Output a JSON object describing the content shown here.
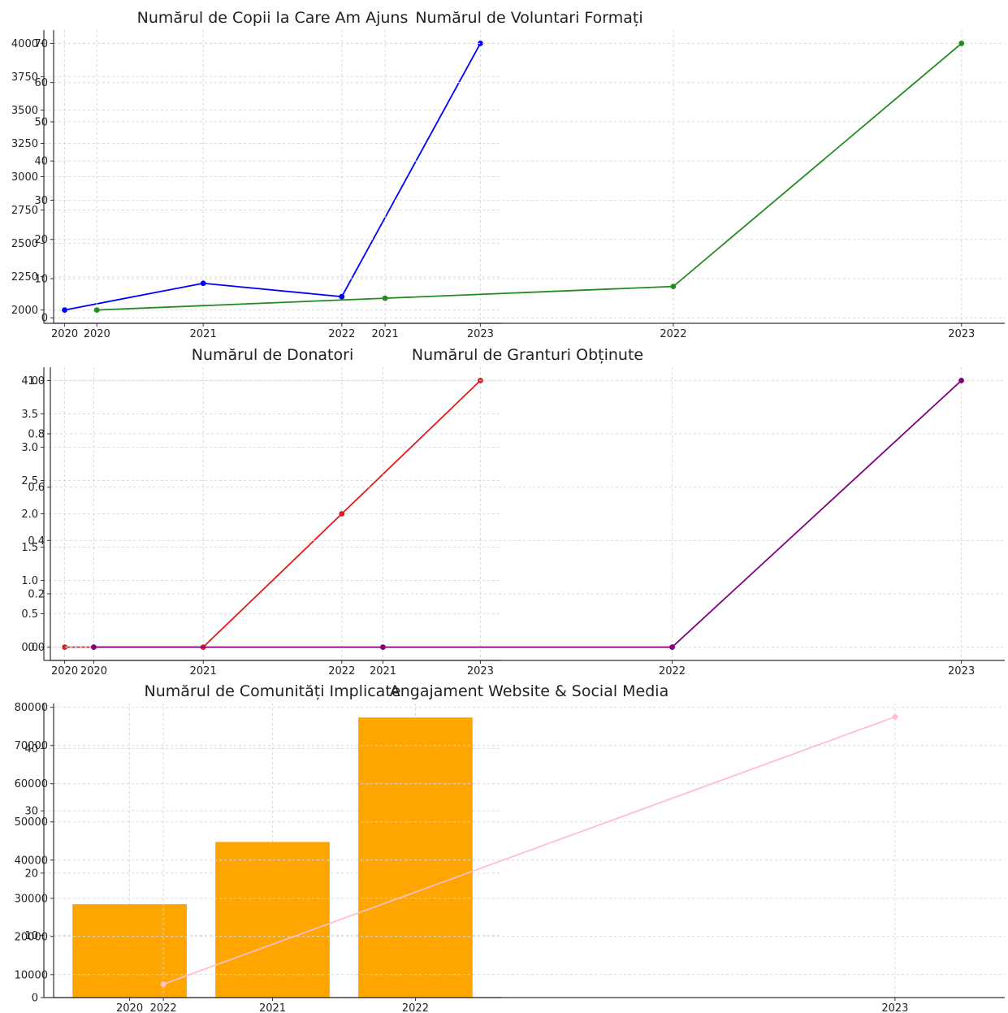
{
  "chart_data": [
    {
      "type": "line",
      "title": "Numărul de Copii la Care Am Ajuns",
      "categories": [
        "2020",
        "2021",
        "2022",
        "2023"
      ],
      "series": [
        {
          "values": [
            2000,
            2200,
            2100,
            4000
          ],
          "color": "#0000ff"
        }
      ],
      "ylim": [
        1900,
        4100
      ],
      "yticks": [
        2000,
        2250,
        2500,
        2750,
        3000,
        3250,
        3500,
        3750,
        4000
      ],
      "ytick_labels": [
        "2000",
        "2250",
        "2500",
        "2750",
        "3000",
        "3250",
        "3500",
        "3750",
        "4000"
      ],
      "grid": true
    },
    {
      "type": "line",
      "title": "Numărul de Voluntari Formați",
      "categories": [
        "2020",
        "2021",
        "2022",
        "2023"
      ],
      "series": [
        {
          "values": [
            2,
            5,
            8,
            70
          ],
          "color": "#228b22"
        }
      ],
      "ylim": [
        -1.4,
        73.4
      ],
      "yticks": [
        0,
        10,
        20,
        30,
        40,
        50,
        60,
        70
      ],
      "ytick_labels": [
        "0",
        "10",
        "20",
        "30",
        "40",
        "50",
        "60",
        "70"
      ],
      "grid": true
    },
    {
      "type": "line",
      "title": "Numărul de Donatori",
      "categories": [
        "2020",
        "2021",
        "2022",
        "2023"
      ],
      "series": [
        {
          "values": [
            0,
            0,
            2,
            4
          ],
          "color": "#e31a1c"
        }
      ],
      "ylim": [
        -0.2,
        4.2
      ],
      "yticks": [
        0.0,
        0.5,
        1.0,
        1.5,
        2.0,
        2.5,
        3.0,
        3.5,
        4.0
      ],
      "ytick_labels": [
        "0.0",
        "0.5",
        "1.0",
        "1.5",
        "2.0",
        "2.5",
        "3.0",
        "3.5",
        "4.0"
      ],
      "grid": true
    },
    {
      "type": "line",
      "title": "Numărul de Granturi Obținute",
      "categories": [
        "2020",
        "2021",
        "2022",
        "2023"
      ],
      "series": [
        {
          "values": [
            0,
            0,
            0,
            1
          ],
          "color": "#800080"
        }
      ],
      "ylim": [
        -0.05,
        1.05
      ],
      "yticks": [
        0.0,
        0.2,
        0.4,
        0.6,
        0.8,
        1.0
      ],
      "ytick_labels": [
        "0.0",
        "0.2",
        "0.4",
        "0.6",
        "0.8",
        "1.0"
      ],
      "grid": true
    },
    {
      "type": "bar",
      "title": "Numărul de Comunități Implicate",
      "categories": [
        "2020",
        "2021",
        "2022"
      ],
      "series": [
        {
          "values": [
            15,
            25,
            45
          ],
          "color": "#ffa500"
        }
      ],
      "ylim": [
        0,
        47.25
      ],
      "yticks": [
        0,
        10,
        20,
        30,
        40
      ],
      "ytick_labels": [
        "0",
        "10",
        "20",
        "30",
        "40"
      ],
      "grid": true
    },
    {
      "type": "line",
      "title": "Angajament Website & Social Media",
      "categories": [
        "2022",
        "2023"
      ],
      "series": [
        {
          "values": [
            7500,
            77500
          ],
          "color": "#ffc0cb"
        }
      ],
      "ylim": [
        4000,
        81000
      ],
      "yticks": [
        10000,
        20000,
        30000,
        40000,
        50000,
        60000,
        70000,
        80000
      ],
      "ytick_labels": [
        "10000",
        "20000",
        "30000",
        "40000",
        "50000",
        "60000",
        "70000",
        "80000"
      ],
      "grid": true
    }
  ]
}
